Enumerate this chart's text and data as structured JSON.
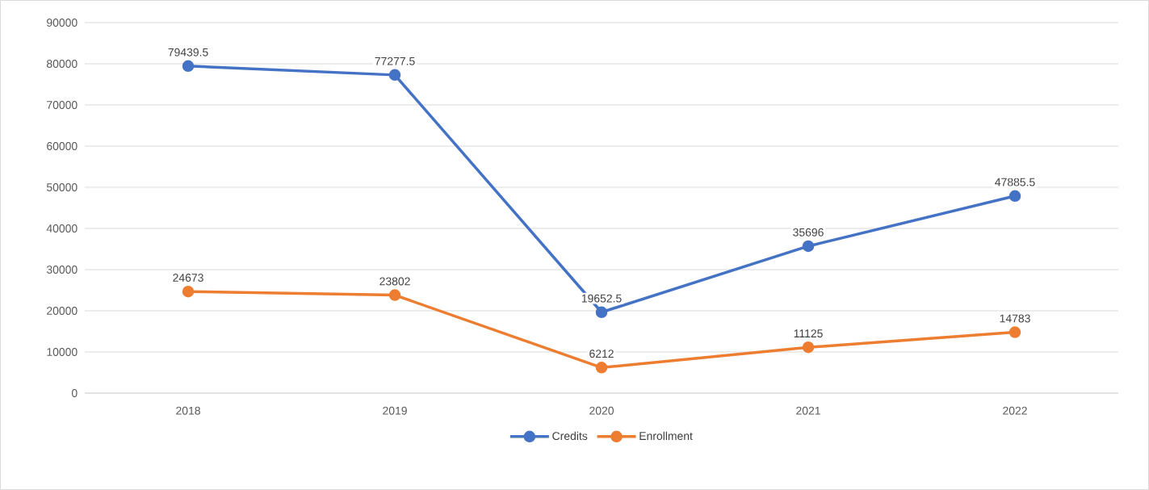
{
  "chart_data": {
    "type": "line",
    "categories": [
      "2018",
      "2019",
      "2020",
      "2021",
      "2022"
    ],
    "series": [
      {
        "name": "Credits",
        "color": "#4472c4",
        "values": [
          79439.5,
          77277.5,
          19652.5,
          35696,
          47885.5
        ]
      },
      {
        "name": "Enrollment",
        "color": "#ed7d31",
        "values": [
          24673,
          23802,
          6212,
          11125,
          14783
        ]
      }
    ],
    "ylim": [
      0,
      90000
    ],
    "yticks": [
      0,
      10000,
      20000,
      30000,
      40000,
      50000,
      60000,
      70000,
      80000,
      90000
    ],
    "grid": "y",
    "legend": "bottom",
    "marker": "circle",
    "line_style": "solid",
    "data_labels": true
  }
}
